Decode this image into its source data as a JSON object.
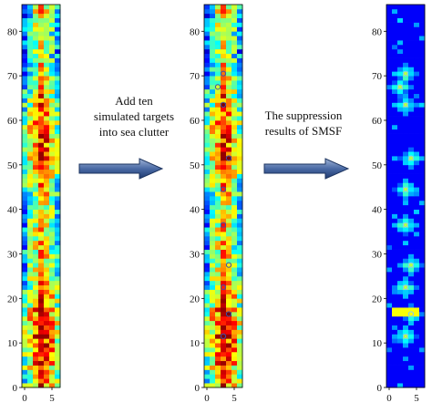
{
  "captions": {
    "step1": {
      "line1": "Add ten",
      "line2": "simulated targets",
      "line3": "into sea clutter"
    },
    "step2": {
      "line1": "The suppression",
      "line2": "results of SMSF"
    }
  },
  "axes": {
    "y_ticks": [
      0,
      10,
      20,
      30,
      40,
      50,
      60,
      70,
      80
    ],
    "x_ticks": [
      0,
      5
    ],
    "y_range": [
      0,
      86
    ],
    "x_range": [
      -0.5,
      6.5
    ],
    "rows": 86,
    "cols": 7
  },
  "panels": [
    {
      "id": "clutter",
      "colormap": "jet"
    },
    {
      "id": "clutter-with-targets",
      "colormap": "jet"
    },
    {
      "id": "smsf-result",
      "colormap": "jet"
    }
  ],
  "chart_data": {
    "type": "heatmap",
    "panels": [
      "sea clutter",
      "sea clutter with ten simulated targets",
      "suppression result of SMSF"
    ],
    "x_ticks": [
      0,
      5
    ],
    "y_ticks": [
      0,
      10,
      20,
      30,
      40,
      50,
      60,
      70,
      80
    ],
    "xlim": [
      -0.5,
      6.5
    ],
    "ylim": [
      0,
      86
    ],
    "colormap": "jet",
    "target_count": 10,
    "targets": [
      {
        "x": 3,
        "y": 11
      },
      {
        "x": 4,
        "y": 16
      },
      {
        "x": 3,
        "y": 22
      },
      {
        "x": 4,
        "y": 27
      },
      {
        "x": 3,
        "y": 36
      },
      {
        "x": 3,
        "y": 44
      },
      {
        "x": 4,
        "y": 51
      },
      {
        "x": 3,
        "y": 63
      },
      {
        "x": 2,
        "y": 67
      },
      {
        "x": 3,
        "y": 70
      }
    ]
  }
}
